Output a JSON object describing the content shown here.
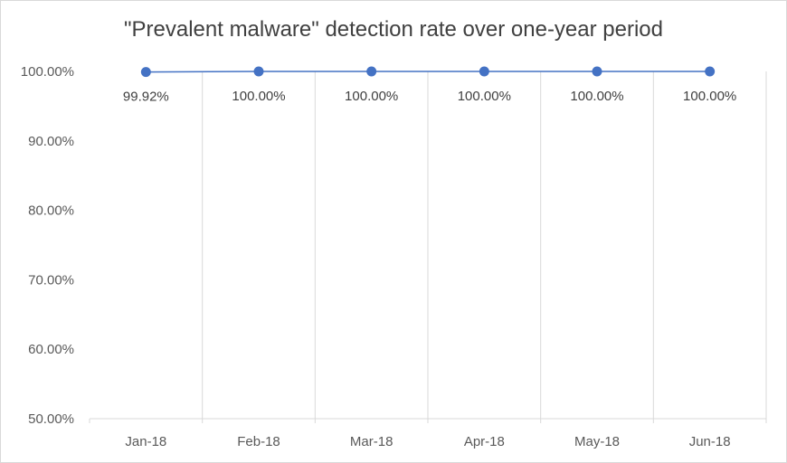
{
  "chart_data": {
    "type": "line",
    "title": "\"Prevalent malware\" detection rate over one-year period",
    "xlabel": "",
    "ylabel": "",
    "categories": [
      "Jan-18",
      "Feb-18",
      "Mar-18",
      "Apr-18",
      "May-18",
      "Jun-18"
    ],
    "series": [
      {
        "values": [
          99.92,
          100.0,
          100.0,
          100.0,
          100.0,
          100.0
        ],
        "data_labels": [
          "99.92%",
          "100.00%",
          "100.00%",
          "100.00%",
          "100.00%",
          "100.00%"
        ],
        "color": "#4472c4"
      }
    ],
    "ylim": [
      50,
      100
    ],
    "yticks": [
      50,
      60,
      70,
      80,
      90,
      100
    ],
    "ytick_labels": [
      "50.00%",
      "60.00%",
      "70.00%",
      "80.00%",
      "90.00%",
      "100.00%"
    ],
    "grid": "vertical",
    "legend": "none",
    "axis_color": "#d9d9d9"
  }
}
